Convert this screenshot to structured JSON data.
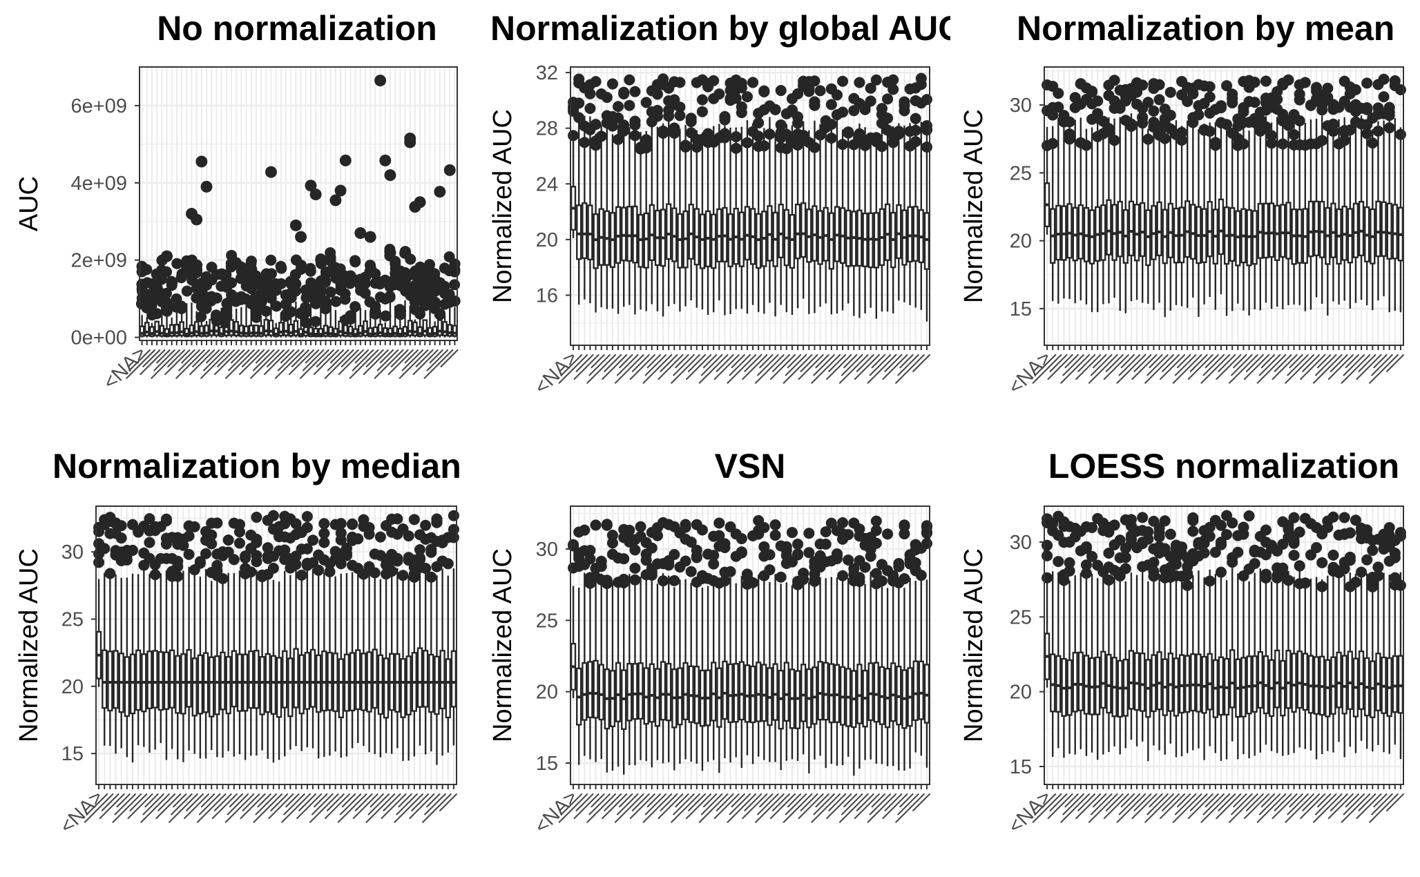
{
  "colors": {
    "ink": "#262626",
    "panel_background": "#ffffff",
    "grid": "#ebebeb",
    "frame": "#333333",
    "tick_text": "#4d4d4d"
  },
  "chart_data": [
    {
      "type": "boxplot",
      "title": "No normalization",
      "ylabel": "AUC",
      "ylim": [
        -80000000,
        7000000000
      ],
      "yticks": [
        0,
        2000000000,
        4000000000,
        6000000000
      ],
      "ytick_labels": [
        "0e+00",
        "2e+09",
        "4e+09",
        "6e+09"
      ],
      "n_boxes": 64,
      "first_category_label": "<NA>",
      "grid": true,
      "legend": "none",
      "box_summary": {
        "median": 120000000,
        "q1": 40000000,
        "q3": 330000000,
        "whisker_low": 0,
        "whisker_high": 780000000
      },
      "notable_outliers": [
        {
          "x": 48,
          "y": 6650000000
        },
        {
          "x": 54,
          "y": 5150000000
        },
        {
          "x": 54,
          "y": 5050000000
        },
        {
          "x": 12,
          "y": 4550000000
        },
        {
          "x": 26,
          "y": 4280000000
        },
        {
          "x": 49,
          "y": 4580000000
        },
        {
          "x": 50,
          "y": 4200000000
        },
        {
          "x": 41,
          "y": 4580000000
        },
        {
          "x": 62,
          "y": 4330000000
        },
        {
          "x": 34,
          "y": 3930000000
        },
        {
          "x": 35,
          "y": 3700000000
        },
        {
          "x": 13,
          "y": 3900000000
        },
        {
          "x": 60,
          "y": 3770000000
        },
        {
          "x": 10,
          "y": 3200000000
        },
        {
          "x": 11,
          "y": 3050000000
        },
        {
          "x": 40,
          "y": 3800000000
        },
        {
          "x": 39,
          "y": 3550000000
        },
        {
          "x": 56,
          "y": 3500000000
        },
        {
          "x": 55,
          "y": 3380000000
        },
        {
          "x": 31,
          "y": 2900000000
        },
        {
          "x": 32,
          "y": 2600000000
        },
        {
          "x": 44,
          "y": 2700000000
        },
        {
          "x": 46,
          "y": 2600000000
        },
        {
          "x": 5,
          "y": 2100000000
        }
      ]
    },
    {
      "type": "boxplot",
      "title": "Normalization by global AUC",
      "ylabel": "Normalized AUC",
      "ylim": [
        12.4,
        32.4
      ],
      "yticks": [
        16,
        20,
        24,
        28,
        32
      ],
      "ytick_labels": [
        "16",
        "20",
        "24",
        "28",
        "32"
      ],
      "n_boxes": 64,
      "first_category_label": "<NA>",
      "grid": true,
      "legend": "none",
      "box_summary": {
        "median": 20.2,
        "q1": 18.3,
        "q3": 22.2,
        "whisker_low": 15.0,
        "whisker_high": 28.2,
        "outlier_range": [
          26.5,
          31.6
        ]
      }
    },
    {
      "type": "boxplot",
      "title": "Normalization by mean",
      "ylabel": "Normalized AUC",
      "ylim": [
        12.3,
        32.8
      ],
      "yticks": [
        15,
        20,
        25,
        30
      ],
      "ytick_labels": [
        "15",
        "20",
        "25",
        "30"
      ],
      "n_boxes": 64,
      "first_category_label": "<NA>",
      "grid": true,
      "legend": "none",
      "box_summary": {
        "median": 20.5,
        "q1": 18.6,
        "q3": 22.6,
        "whisker_low": 15.2,
        "whisker_high": 28.8,
        "outlier_range": [
          27.0,
          31.9
        ]
      }
    },
    {
      "type": "boxplot",
      "title": "Normalization by median",
      "ylabel": "Normalized AUC",
      "ylim": [
        12.7,
        33.4
      ],
      "yticks": [
        15,
        20,
        25,
        30
      ],
      "ytick_labels": [
        "15",
        "20",
        "25",
        "30"
      ],
      "n_boxes": 64,
      "first_category_label": "<NA>",
      "grid": true,
      "legend": "none",
      "box_summary": {
        "median": 20.3,
        "q1": 18.1,
        "q3": 22.4,
        "whisker_low": 15.0,
        "whisker_high": 28.4,
        "outlier_range": [
          28.0,
          32.7
        ]
      }
    },
    {
      "type": "boxplot",
      "title": "VSN",
      "ylabel": "Normalized AUC",
      "ylim": [
        13.5,
        33.0
      ],
      "yticks": [
        15,
        20,
        25,
        30
      ],
      "ytick_labels": [
        "15",
        "20",
        "25",
        "30"
      ],
      "n_boxes": 64,
      "first_category_label": "<NA>",
      "grid": true,
      "legend": "none",
      "box_summary": {
        "median": 19.7,
        "q1": 17.8,
        "q3": 21.8,
        "whisker_low": 15.0,
        "whisker_high": 27.8,
        "outlier_range": [
          27.5,
          32.0
        ]
      }
    },
    {
      "type": "boxplot",
      "title": "LOESS normalization",
      "ylabel": "Normalized AUC",
      "ylim": [
        13.8,
        32.4
      ],
      "yticks": [
        15,
        20,
        25,
        30
      ],
      "ytick_labels": [
        "15",
        "20",
        "25",
        "30"
      ],
      "n_boxes": 64,
      "first_category_label": "<NA>",
      "grid": true,
      "legend": "none",
      "box_summary": {
        "median": 20.4,
        "q1": 18.6,
        "q3": 22.4,
        "whisker_low": 16.0,
        "whisker_high": 27.8,
        "outlier_range": [
          27.0,
          31.8
        ]
      }
    }
  ]
}
